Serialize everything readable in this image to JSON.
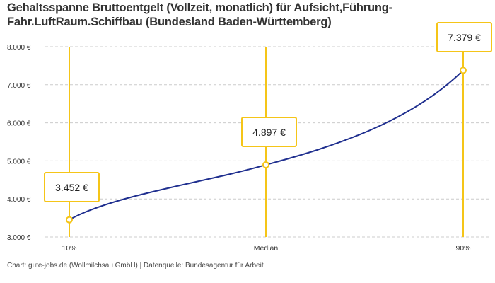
{
  "chart_data": {
    "type": "line",
    "title": "Gehaltsspanne Bruttoentgelt (Vollzeit, monatlich) für Aufsicht,Führung-Fahr.LuftRaum.Schiffbau (Bundesland Baden-Württemberg)",
    "categories": [
      "10%",
      "Median",
      "90%"
    ],
    "values": [
      3452,
      4897,
      7379
    ],
    "data_labels": [
      "3.452 €",
      "4.897 €",
      "7.379 €"
    ],
    "ylim": [
      3000,
      8000
    ],
    "yticks": [
      3000,
      4000,
      5000,
      6000,
      7000,
      8000
    ],
    "ytick_labels": [
      "3.000 €",
      "4.000 €",
      "5.000 €",
      "6.000 €",
      "7.000 €",
      "8.000 €"
    ],
    "grid": "horizontal dashed",
    "legend": "none",
    "colors": {
      "line": "#1f2f8f",
      "marker": "#f5c518",
      "grid": "#cccccc"
    }
  },
  "footer": "Chart: gute-jobs.de (Wollmilchsau GmbH) | Datenquelle: Bundesagentur für Arbeit"
}
